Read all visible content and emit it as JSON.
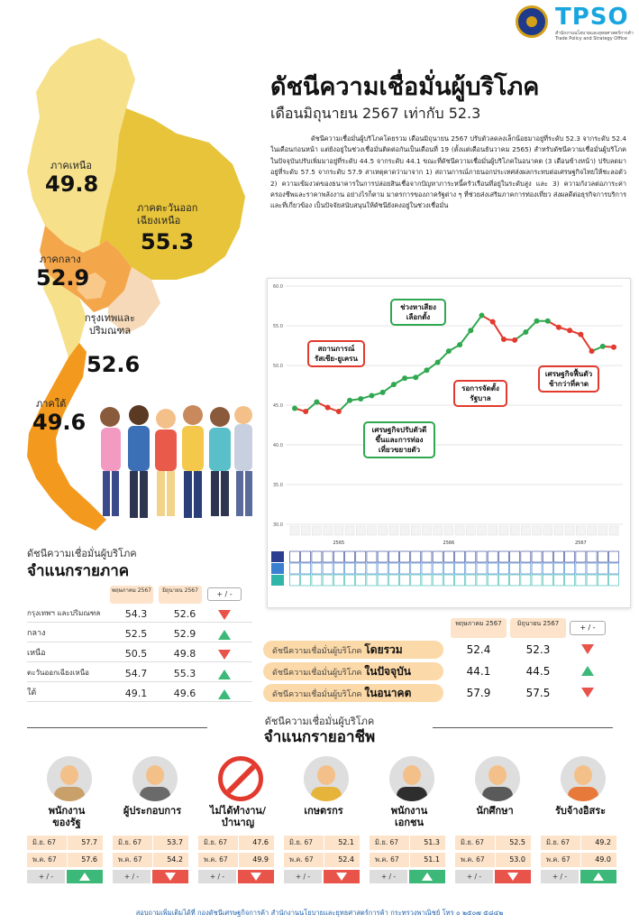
{
  "header": {
    "logo_text": "TPSO",
    "logo_sub": "สำนักงานนโยบายและยุทธศาสตร์การค้า Trade Policy and Strategy Office"
  },
  "title": "ดัชนีความเชื่อมั่นผู้บริโภค",
  "subtitle": "เดือนมิถุนายน 2567 เท่ากับ 52.3",
  "intro": "ดัชนีความเชื่อมั่นผู้บริโภคโดยรวม เดือนมิถุนายน 2567 ปรับตัวลดลงเล็กน้อยมาอยู่ที่ระดับ 52.3 จากระดับ 52.4 ในเดือนก่อนหน้า แต่ยังอยู่ในช่วงเชื่อมั่นติดต่อกันเป็นเดือนที่ 19 (ตั้งแต่เดือนธันวาคม 2565) สำหรับดัชนีความเชื่อมั่นผู้บริโภคในปัจจุบันปรับเพิ่มมาอยู่ที่ระดับ 44.5 จากระดับ 44.1 ขณะที่ดัชนีความเชื่อมั่นผู้บริโภคในอนาคต (3 เดือนข้างหน้า) ปรับลดมาอยู่ที่ระดับ 57.5 จากระดับ 57.9 สาเหตุคาดว่ามาจาก 1) สถานการณ์ภายนอกประเทศส่งผลกระทบต่อเศรษฐกิจไทยให้ชะลอตัว 2) ความเข้มงวดของธนาคารในการปล่อยสินเชื่อจากปัญหาภาระหนี้ครัวเรือนที่อยู่ในระดับสูง และ 3) ความกังวลต่อภาระค่าครองชีพและราคาพลังงาน อย่างไรก็ตาม มาตรการของภาครัฐต่าง ๆ ที่ช่วยส่งเสริมภาคการท่องเที่ยว ส่งผลดีต่อธุรกิจการบริการและที่เกี่ยวข้อง เป็นปัจจัยสนับสนุนให้ดัชนียังคงอยู่ในช่วงเชื่อมั่น",
  "map": {
    "north": {
      "name": "ภาคเหนือ",
      "value": "49.8"
    },
    "northeast": {
      "name": "ภาคตะวันออกเฉียงเหนือ",
      "value": "55.3"
    },
    "central": {
      "name": "ภาคกลาง",
      "value": "52.9"
    },
    "bangkok": {
      "name": "กรุงเทพและปริมณฑล",
      "value": "52.6"
    },
    "south": {
      "name": "ภาคใต้",
      "value": "49.6"
    },
    "colors": {
      "north": "#f6e08a",
      "northeast": "#e8c43a",
      "central": "#f4a64a",
      "bangkok": "#f9c98a",
      "south": "#f39a1e"
    }
  },
  "chart_data": {
    "type": "line",
    "title": "",
    "xlabel": "",
    "ylabel": "",
    "ylim": [
      30,
      60
    ],
    "yticks": [
      "30.0",
      "35.0",
      "40.0",
      "45.0",
      "50.0",
      "55.0",
      "60.0"
    ],
    "year_labels": [
      "2565",
      "2566",
      "2567"
    ],
    "x": [
      1,
      2,
      3,
      4,
      5,
      6,
      7,
      8,
      9,
      10,
      11,
      12,
      13,
      14,
      15,
      16,
      17,
      18,
      19,
      20,
      21,
      22,
      23,
      24,
      25,
      26,
      27,
      28,
      29,
      30
    ],
    "series": [
      {
        "name": "",
        "values": [
          44.6,
          44.2,
          45.4,
          44.7,
          44.2,
          45.6,
          45.8,
          46.2,
          46.6,
          47.6,
          48.4,
          48.5,
          49.4,
          50.4,
          51.8,
          52.6,
          54.4,
          56.3,
          55.5,
          53.3,
          53.2,
          54.2,
          55.6,
          55.6,
          54.8,
          54.4,
          53.9,
          51.8,
          52.4,
          52.3
        ]
      }
    ],
    "callouts": [
      {
        "text": "ช่วงหาเสียงเลือกตั้ง"
      },
      {
        "text": "สถานการณ์รัสเซีย-ยูเครน"
      },
      {
        "text": "รอการจัดตั้งรัฐบาล"
      },
      {
        "text": "เศรษฐกิจฟื้นตัวช้ากว่าที่คาด"
      },
      {
        "text": "เศรษฐกิจปรับตัวดีขึ้นและการท่องเที่ยวขยายตัว"
      }
    ],
    "colors": {
      "up": "#2fa84f",
      "down": "#e23a2e"
    }
  },
  "region_table": {
    "heading1": "ดัชนีความเชื่อมั่นผู้บริโภค",
    "heading2": "จำแนกรายภาค",
    "col1": "พฤษภาคม 2567",
    "col2": "มิถุนายน 2567",
    "col3": "+ / -",
    "rows": [
      {
        "label": "กรุงเทพฯ และปริมณฑล",
        "may": "54.3",
        "jun": "52.6",
        "trend": "down"
      },
      {
        "label": "กลาง",
        "may": "52.5",
        "jun": "52.9",
        "trend": "up"
      },
      {
        "label": "เหนือ",
        "may": "50.5",
        "jun": "49.8",
        "trend": "down"
      },
      {
        "label": "ตะวันออกเฉียงเหนือ",
        "may": "54.7",
        "jun": "55.3",
        "trend": "up"
      },
      {
        "label": "ใต้",
        "may": "49.1",
        "jun": "49.6",
        "trend": "up"
      }
    ]
  },
  "summary_table": {
    "col1": "พฤษภาคม 2567",
    "col2": "มิถุนายน 2567",
    "col3": "+ / -",
    "rows": [
      {
        "prefix": "ดัชนีความเชื่อมั่นผู้บริโภค",
        "bold": "โดยรวม",
        "may": "52.4",
        "jun": "52.3",
        "trend": "down"
      },
      {
        "prefix": "ดัชนีความเชื่อมั่นผู้บริโภค",
        "bold": "ในปัจจุบัน",
        "may": "44.1",
        "jun": "44.5",
        "trend": "up"
      },
      {
        "prefix": "ดัชนีความเชื่อมั่นผู้บริโภค",
        "bold": "ในอนาคต",
        "may": "57.9",
        "jun": "57.5",
        "trend": "down"
      }
    ]
  },
  "occupation": {
    "heading1": "ดัชนีความเชื่อมั่นผู้บริโภค",
    "heading2": "จำแนกรายอาชีพ",
    "row1_label": "มิ.ย. 67",
    "row2_label": "พ.ค. 67",
    "pm_label": "+ / -",
    "items": [
      {
        "name1": "พนักงาน",
        "name2": "ของรัฐ",
        "jun": "57.7",
        "may": "57.6",
        "trend": "up",
        "icon": "government-officer-icon"
      },
      {
        "name1": "ผู้ประกอบการ",
        "name2": "",
        "jun": "53.7",
        "may": "54.2",
        "trend": "down",
        "icon": "business-owner-icon"
      },
      {
        "name1": "ไม่ได้ทำงาน/",
        "name2": "บำนาญ",
        "jun": "47.6",
        "may": "49.9",
        "trend": "down",
        "icon": "no-work-icon"
      },
      {
        "name1": "เกษตรกร",
        "name2": "",
        "jun": "52.1",
        "may": "52.4",
        "trend": "down",
        "icon": "farmer-icon"
      },
      {
        "name1": "พนักงาน",
        "name2": "เอกชน",
        "jun": "51.3",
        "may": "51.1",
        "trend": "up",
        "icon": "private-employee-icon"
      },
      {
        "name1": "นักศึกษา",
        "name2": "",
        "jun": "52.5",
        "may": "53.0",
        "trend": "down",
        "icon": "student-icon"
      },
      {
        "name1": "รับจ้างอิสระ",
        "name2": "",
        "jun": "49.2",
        "may": "49.0",
        "trend": "up",
        "icon": "freelancer-icon"
      }
    ]
  },
  "footer": "สอบถามเพิ่มเติมได้ที่ กองดัชนีเศรษฐกิจการค้า สำนักงานนโยบายและยุทธศาสตร์การค้า กระทรวงพาณิชย์ โทร ๐ ๒๕๐๗ ๕๘๔๒"
}
